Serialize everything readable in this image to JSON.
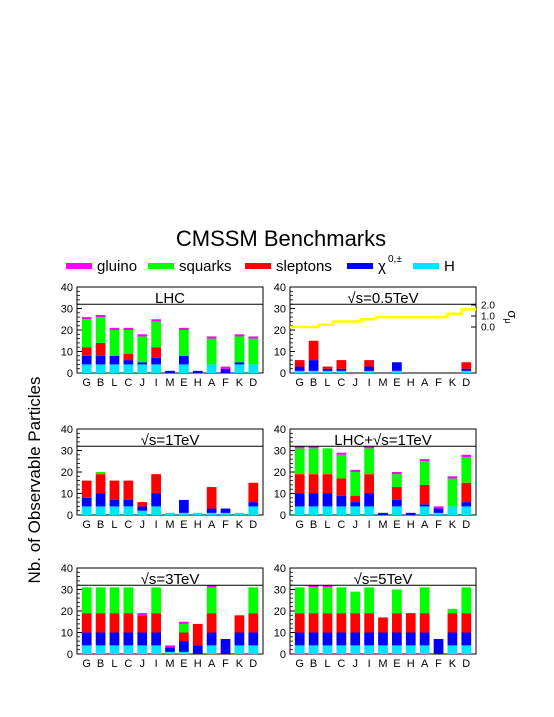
{
  "figure": {
    "title": "CMSSM Benchmarks",
    "ylabel": "Nb. of Observable Particles",
    "legend": [
      {
        "key": "gluino",
        "label": "gluino",
        "color": "#ff00ff"
      },
      {
        "key": "squarks",
        "label": "squarks",
        "color": "#00ff00"
      },
      {
        "key": "sleptons",
        "label": "sleptons",
        "color": "#ff0000"
      },
      {
        "key": "chi",
        "label": "χ",
        "sup": "0,±",
        "color": "#0000ff"
      },
      {
        "key": "H",
        "label": "H",
        "color": "#00e5ff"
      }
    ]
  },
  "chart_data": [
    {
      "type": "bar",
      "stacked": true,
      "title": "LHC",
      "categories": [
        "G",
        "B",
        "L",
        "C",
        "J",
        "I",
        "M",
        "E",
        "H",
        "A",
        "F",
        "K",
        "D"
      ],
      "ylim": [
        0,
        40
      ],
      "yticks": [
        0,
        10,
        20,
        30,
        40
      ],
      "refline": 32,
      "series": [
        {
          "name": "H",
          "values": [
            4,
            4,
            4,
            4,
            4,
            4,
            0,
            4,
            0,
            4,
            0,
            4,
            4
          ]
        },
        {
          "name": "χ",
          "values": [
            4,
            4,
            4,
            2,
            1,
            3,
            1,
            4,
            1,
            0,
            2,
            1,
            0
          ]
        },
        {
          "name": "sleptons",
          "values": [
            4,
            6,
            0,
            3,
            0,
            5,
            0,
            0,
            0,
            0,
            0,
            0,
            0
          ]
        },
        {
          "name": "squarks",
          "values": [
            13,
            12,
            12,
            11,
            12,
            12,
            0,
            12,
            0,
            12,
            0,
            12,
            12
          ]
        },
        {
          "name": "gluino",
          "values": [
            1,
            1,
            1,
            1,
            1,
            1,
            0,
            1,
            0,
            1,
            1,
            1,
            1
          ]
        }
      ]
    },
    {
      "type": "bar",
      "stacked": true,
      "title": "√s=0.5TeV",
      "categories": [
        "G",
        "B",
        "L",
        "C",
        "J",
        "I",
        "M",
        "E",
        "H",
        "A",
        "F",
        "K",
        "D"
      ],
      "ylim": [
        0,
        40
      ],
      "yticks": [
        0,
        10,
        20,
        30,
        40
      ],
      "refline": 32,
      "series": [
        {
          "name": "H",
          "values": [
            1,
            1,
            1,
            1,
            0,
            1,
            0,
            1,
            0,
            0,
            0,
            0,
            1
          ]
        },
        {
          "name": "χ",
          "values": [
            2,
            5,
            1,
            1,
            0,
            2,
            0,
            4,
            0,
            0,
            0,
            0,
            1
          ]
        },
        {
          "name": "sleptons",
          "values": [
            3,
            9,
            1,
            4,
            0,
            3,
            0,
            0,
            0,
            0,
            0,
            0,
            3
          ]
        },
        {
          "name": "squarks",
          "values": [
            0,
            0,
            0,
            0,
            0,
            0,
            0,
            0,
            0,
            0,
            0,
            0,
            0
          ]
        },
        {
          "name": "gluino",
          "values": [
            0,
            0,
            0,
            0,
            0,
            0,
            0,
            0,
            0,
            0,
            0,
            0,
            0
          ]
        }
      ],
      "line": {
        "name": "σ",
        "values": [
          0.0,
          0.0,
          0.2,
          0.5,
          0.5,
          0.7,
          0.9,
          0.9,
          0.9,
          0.9,
          0.9,
          1.2,
          1.6
        ],
        "right_axis": {
          "ticks": [
            "2.0",
            "1.0",
            "0.0"
          ],
          "values": [
            2.0,
            1.0,
            0.0
          ],
          "label": "σ",
          "label_sub": "μ",
          "range": [
            0.0,
            2.0
          ]
        }
      }
    },
    {
      "type": "bar",
      "stacked": true,
      "title": "√s=1TeV",
      "categories": [
        "G",
        "B",
        "L",
        "C",
        "J",
        "I",
        "M",
        "E",
        "H",
        "A",
        "F",
        "K",
        "D"
      ],
      "ylim": [
        0,
        40
      ],
      "yticks": [
        0,
        10,
        20,
        30,
        40
      ],
      "refline": 32,
      "series": [
        {
          "name": "H",
          "values": [
            4,
            4,
            4,
            4,
            2,
            4,
            1,
            1,
            1,
            1,
            1,
            1,
            4
          ]
        },
        {
          "name": "χ",
          "values": [
            4,
            6,
            3,
            3,
            2,
            6,
            0,
            6,
            0,
            2,
            2,
            0,
            2
          ]
        },
        {
          "name": "sleptons",
          "values": [
            8,
            9,
            9,
            9,
            2,
            9,
            0,
            0,
            0,
            10,
            0,
            0,
            9
          ]
        },
        {
          "name": "squarks",
          "values": [
            0,
            1,
            0,
            0,
            0,
            0,
            0,
            0,
            0,
            0,
            0,
            0,
            0
          ]
        },
        {
          "name": "gluino",
          "values": [
            0,
            0,
            0,
            0,
            0,
            0,
            0,
            0,
            0,
            0,
            0,
            0,
            0
          ]
        }
      ]
    },
    {
      "type": "bar",
      "stacked": true,
      "title": "LHC+√s=1TeV",
      "categories": [
        "G",
        "B",
        "L",
        "C",
        "J",
        "I",
        "M",
        "E",
        "H",
        "A",
        "F",
        "K",
        "D"
      ],
      "ylim": [
        0,
        40
      ],
      "yticks": [
        0,
        10,
        20,
        30,
        40
      ],
      "refline": 32,
      "series": [
        {
          "name": "H",
          "values": [
            4,
            4,
            4,
            4,
            4,
            4,
            0,
            4,
            0,
            4,
            1,
            4,
            4
          ]
        },
        {
          "name": "χ",
          "values": [
            6,
            6,
            6,
            5,
            2,
            6,
            1,
            3,
            1,
            1,
            2,
            0,
            2
          ]
        },
        {
          "name": "sleptons",
          "values": [
            9,
            9,
            9,
            8,
            3,
            9,
            0,
            6,
            0,
            9,
            0,
            0,
            9
          ]
        },
        {
          "name": "squarks",
          "values": [
            12,
            12,
            12,
            11,
            11,
            12,
            0,
            6,
            0,
            11,
            0,
            13,
            12
          ]
        },
        {
          "name": "gluino",
          "values": [
            1,
            1,
            0,
            1,
            1,
            1,
            0,
            1,
            0,
            1,
            1,
            1,
            1
          ]
        }
      ]
    },
    {
      "type": "bar",
      "stacked": true,
      "title": "√s=3TeV",
      "categories": [
        "G",
        "B",
        "L",
        "C",
        "J",
        "I",
        "M",
        "E",
        "H",
        "A",
        "F",
        "K",
        "D"
      ],
      "ylim": [
        0,
        40
      ],
      "yticks": [
        0,
        10,
        20,
        30,
        40
      ],
      "refline": 32,
      "series": [
        {
          "name": "H",
          "values": [
            4,
            4,
            4,
            4,
            4,
            4,
            1,
            1,
            0,
            4,
            0,
            4,
            4
          ]
        },
        {
          "name": "χ",
          "values": [
            6,
            6,
            6,
            6,
            6,
            6,
            2,
            5,
            4,
            6,
            7,
            6,
            6
          ]
        },
        {
          "name": "sleptons",
          "values": [
            9,
            9,
            9,
            9,
            8,
            9,
            0,
            4,
            10,
            9,
            0,
            8,
            9
          ]
        },
        {
          "name": "squarks",
          "values": [
            12,
            12,
            12,
            12,
            0,
            12,
            0,
            4,
            0,
            12,
            0,
            0,
            12
          ]
        },
        {
          "name": "gluino",
          "values": [
            0,
            0,
            0,
            0,
            1,
            0,
            1,
            1,
            0,
            1,
            0,
            0,
            0
          ]
        }
      ]
    },
    {
      "type": "bar",
      "stacked": true,
      "title": "√s=5TeV",
      "categories": [
        "G",
        "B",
        "L",
        "C",
        "J",
        "I",
        "M",
        "E",
        "H",
        "A",
        "F",
        "K",
        "D"
      ],
      "ylim": [
        0,
        40
      ],
      "yticks": [
        0,
        10,
        20,
        30,
        40
      ],
      "refline": 32,
      "series": [
        {
          "name": "H",
          "values": [
            4,
            4,
            4,
            4,
            4,
            4,
            4,
            4,
            4,
            4,
            0,
            4,
            4
          ]
        },
        {
          "name": "χ",
          "values": [
            6,
            6,
            6,
            6,
            6,
            6,
            6,
            6,
            6,
            6,
            7,
            6,
            6
          ]
        },
        {
          "name": "sleptons",
          "values": [
            9,
            9,
            9,
            9,
            9,
            9,
            7,
            9,
            9,
            9,
            0,
            9,
            9
          ]
        },
        {
          "name": "squarks",
          "values": [
            12,
            12,
            12,
            12,
            10,
            12,
            0,
            11,
            0,
            12,
            0,
            2,
            12
          ]
        },
        {
          "name": "gluino",
          "values": [
            0,
            1,
            1,
            0,
            0,
            0,
            0,
            0,
            0,
            0,
            0,
            0,
            0
          ]
        }
      ]
    }
  ]
}
